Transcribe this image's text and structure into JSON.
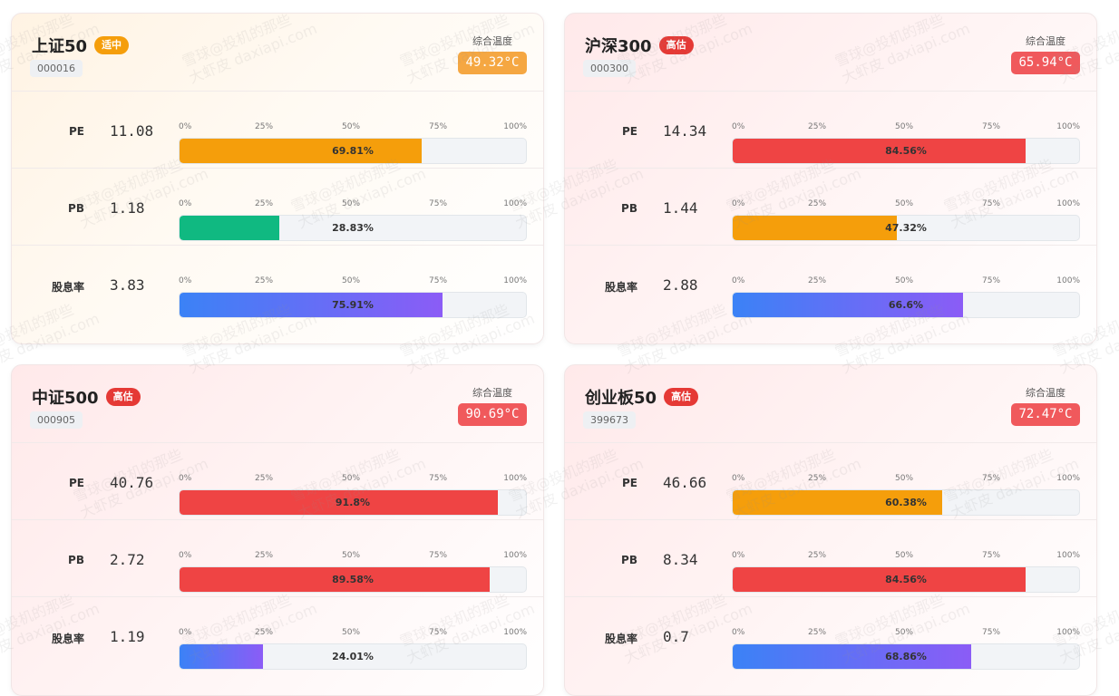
{
  "tick_labels": [
    "0%",
    "25%",
    "50%",
    "75%",
    "100%"
  ],
  "temperature_label": "综合温度",
  "watermark": {
    "line1": "雪球@投机的那些",
    "line2": "大虾皮 daxiapi.com"
  },
  "colors": {
    "orange": "#f59e0b",
    "red": "#ef4444",
    "green": "#10b981",
    "blue_start": "#3b82f6",
    "blue_end": "#8b5cf6",
    "badge_mid": "#f59e0b",
    "badge_high": "#e53935"
  },
  "cards": [
    {
      "name": "上证50",
      "badge": "适中",
      "badge_level": "mid",
      "code": "000016",
      "temperature": "49.32°C",
      "metrics": [
        {
          "label": "PE",
          "value": "11.08",
          "percent": 69.81,
          "percent_text": "69.81%",
          "color": "orange"
        },
        {
          "label": "PB",
          "value": "1.18",
          "percent": 28.83,
          "percent_text": "28.83%",
          "color": "green"
        },
        {
          "label": "股息率",
          "value": "3.83",
          "percent": 75.91,
          "percent_text": "75.91%",
          "color": "blue"
        }
      ]
    },
    {
      "name": "沪深300",
      "badge": "高估",
      "badge_level": "high",
      "code": "000300",
      "temperature": "65.94°C",
      "metrics": [
        {
          "label": "PE",
          "value": "14.34",
          "percent": 84.56,
          "percent_text": "84.56%",
          "color": "red"
        },
        {
          "label": "PB",
          "value": "1.44",
          "percent": 47.32,
          "percent_text": "47.32%",
          "color": "orange"
        },
        {
          "label": "股息率",
          "value": "2.88",
          "percent": 66.6,
          "percent_text": "66.6%",
          "color": "blue"
        }
      ]
    },
    {
      "name": "中证500",
      "badge": "高估",
      "badge_level": "high",
      "code": "000905",
      "temperature": "90.69°C",
      "metrics": [
        {
          "label": "PE",
          "value": "40.76",
          "percent": 91.8,
          "percent_text": "91.8%",
          "color": "red"
        },
        {
          "label": "PB",
          "value": "2.72",
          "percent": 89.58,
          "percent_text": "89.58%",
          "color": "red"
        },
        {
          "label": "股息率",
          "value": "1.19",
          "percent": 24.01,
          "percent_text": "24.01%",
          "color": "blue"
        }
      ]
    },
    {
      "name": "创业板50",
      "badge": "高估",
      "badge_level": "high",
      "code": "399673",
      "temperature": "72.47°C",
      "metrics": [
        {
          "label": "PE",
          "value": "46.66",
          "percent": 60.38,
          "percent_text": "60.38%",
          "color": "orange"
        },
        {
          "label": "PB",
          "value": "8.34",
          "percent": 84.56,
          "percent_text": "84.56%",
          "color": "red"
        },
        {
          "label": "股息率",
          "value": "0.7",
          "percent": 68.86,
          "percent_text": "68.86%",
          "color": "blue"
        }
      ]
    }
  ]
}
